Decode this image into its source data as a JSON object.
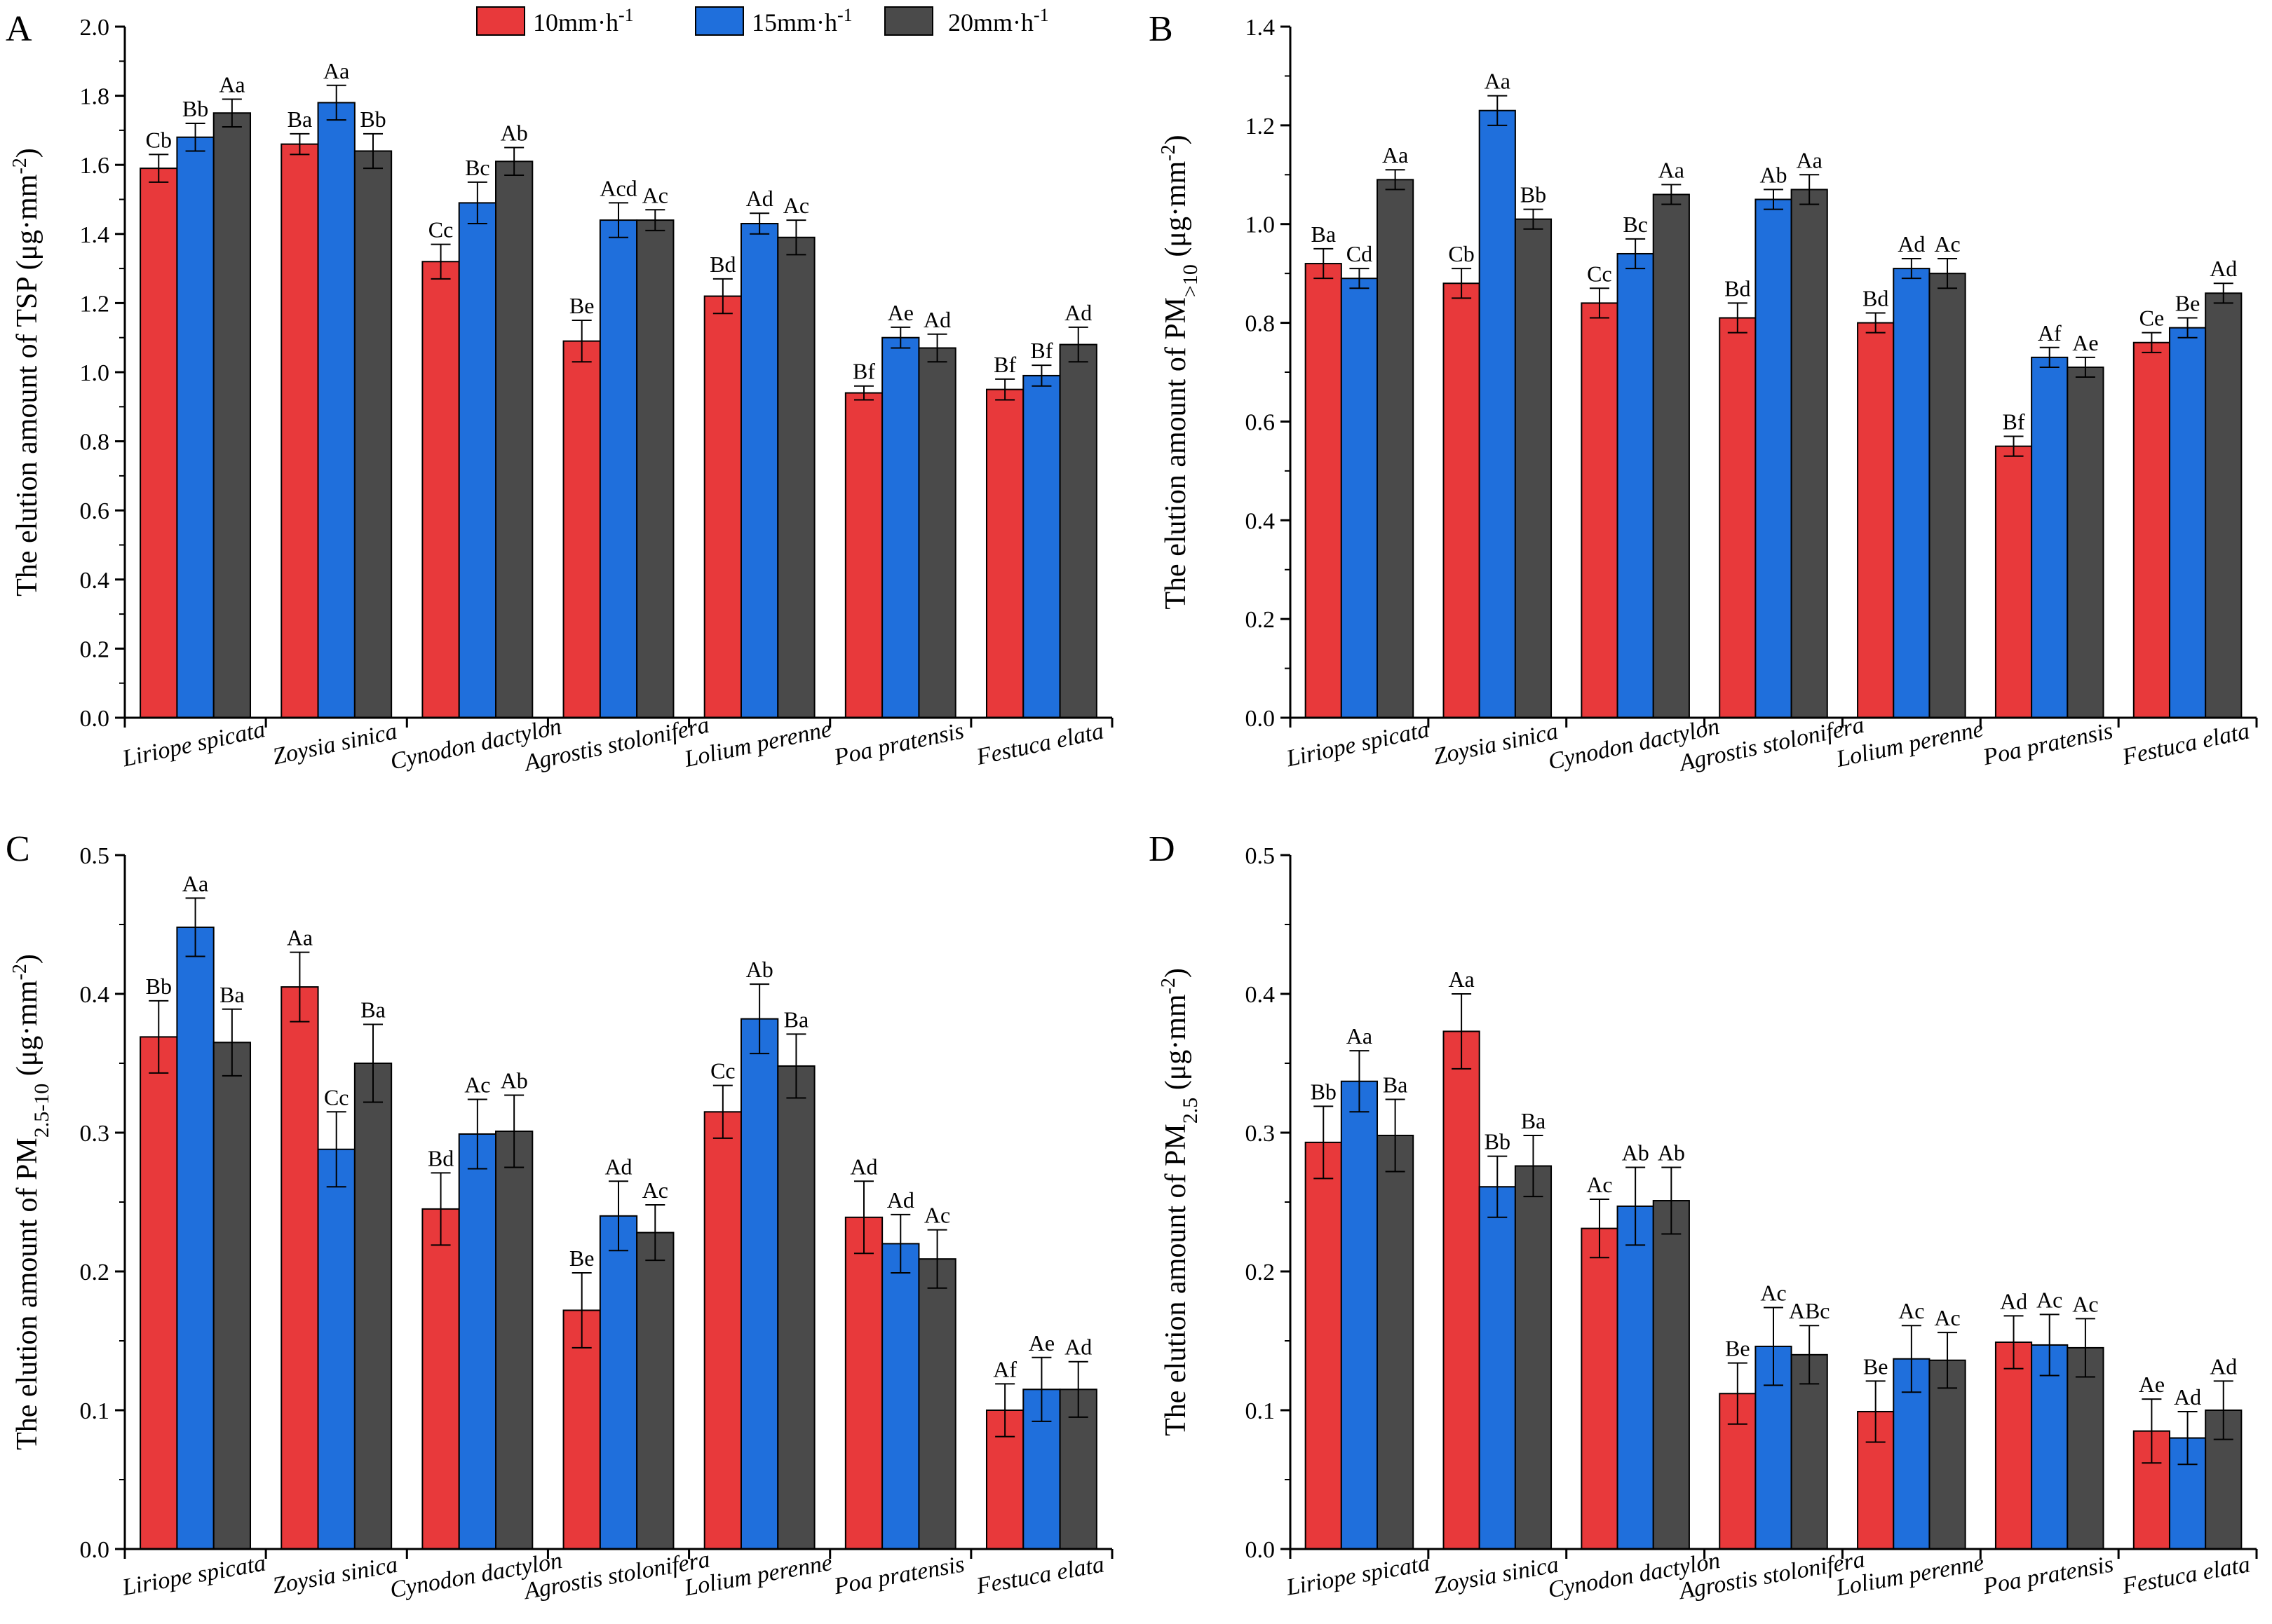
{
  "colors": {
    "rate10": "#e8393b",
    "rate15": "#1f6fdc",
    "rate20": "#4a4a4a",
    "axis": "#000000"
  },
  "legend": [
    {
      "label": "10mm·h",
      "sup": "-1",
      "color_key": "rate10"
    },
    {
      "label": "15mm·h",
      "sup": "-1",
      "color_key": "rate15"
    },
    {
      "label": "20mm·h",
      "sup": "-1",
      "color_key": "rate20"
    }
  ],
  "chart_data": [
    {
      "panel": "A",
      "type": "bar",
      "ylabel": {
        "main": "The elution amount of TSP (μg·mm",
        "sub": "",
        "tail": "",
        "sup": "-2",
        "end": ")"
      },
      "ylim": [
        0,
        2.0
      ],
      "yticks": [
        "0.0",
        "0.2",
        "0.4",
        "0.6",
        "0.8",
        "1.0",
        "1.2",
        "1.4",
        "1.6",
        "1.8",
        "2.0"
      ],
      "categories": [
        "Liriope spicata",
        "Zoysia sinica",
        "Cynodon dactylon",
        "Agrostis stolonifera",
        "Lolium perenne",
        "Poa pratensis",
        "Festuca elata"
      ],
      "series": [
        {
          "name": "10mm·h-1",
          "values": [
            1.59,
            1.66,
            1.32,
            1.09,
            1.22,
            0.94,
            0.95
          ],
          "errors": [
            0.04,
            0.03,
            0.05,
            0.06,
            0.05,
            0.02,
            0.03
          ],
          "labels": [
            "Cb",
            "Ba",
            "Cc",
            "Be",
            "Bd",
            "Bf",
            "Bf"
          ]
        },
        {
          "name": "15mm·h-1",
          "values": [
            1.68,
            1.78,
            1.49,
            1.44,
            1.43,
            1.1,
            0.99
          ],
          "errors": [
            0.04,
            0.05,
            0.06,
            0.05,
            0.03,
            0.03,
            0.03
          ],
          "labels": [
            "Bb",
            "Aa",
            "Bc",
            "Acd",
            "Ad",
            "Ae",
            "Bf"
          ]
        },
        {
          "name": "20mm·h-1",
          "values": [
            1.75,
            1.64,
            1.61,
            1.44,
            1.39,
            1.07,
            1.08
          ],
          "errors": [
            0.04,
            0.05,
            0.04,
            0.03,
            0.05,
            0.04,
            0.05
          ],
          "labels": [
            "Aa",
            "Bb",
            "Ab",
            "Ac",
            "Ac",
            "Ad",
            "Ad"
          ]
        }
      ]
    },
    {
      "panel": "B",
      "type": "bar",
      "ylabel": {
        "main": "The elution amount of PM",
        "sub": ">10",
        "tail": " (μg·mm",
        "sup": "-2",
        "end": ")"
      },
      "ylim": [
        0,
        1.4
      ],
      "yticks": [
        "0.0",
        "0.2",
        "0.4",
        "0.6",
        "0.8",
        "1.0",
        "1.2",
        "1.4"
      ],
      "categories": [
        "Liriope spicata",
        "Zoysia sinica",
        "Cynodon dactylon",
        "Agrostis stolonifera",
        "Lolium perenne",
        "Poa pratensis",
        "Festuca elata"
      ],
      "series": [
        {
          "name": "10mm·h-1",
          "values": [
            0.92,
            0.88,
            0.84,
            0.81,
            0.8,
            0.55,
            0.76
          ],
          "errors": [
            0.03,
            0.03,
            0.03,
            0.03,
            0.02,
            0.02,
            0.02
          ],
          "labels": [
            "Ba",
            "Cb",
            "Cc",
            "Bd",
            "Bd",
            "Bf",
            "Ce"
          ]
        },
        {
          "name": "15mm·h-1",
          "values": [
            0.89,
            1.23,
            0.94,
            1.05,
            0.91,
            0.73,
            0.79
          ],
          "errors": [
            0.02,
            0.03,
            0.03,
            0.02,
            0.02,
            0.02,
            0.02
          ],
          "labels": [
            "Cd",
            "Aa",
            "Bc",
            "Ab",
            "Ad",
            "Af",
            "Be"
          ]
        },
        {
          "name": "20mm·h-1",
          "values": [
            1.09,
            1.01,
            1.06,
            1.07,
            0.9,
            0.71,
            0.86
          ],
          "errors": [
            0.02,
            0.02,
            0.02,
            0.03,
            0.03,
            0.02,
            0.02
          ],
          "labels": [
            "Aa",
            "Bb",
            "Aa",
            "Aa",
            "Ac",
            "Ae",
            "Ad"
          ]
        }
      ]
    },
    {
      "panel": "C",
      "type": "bar",
      "ylabel": {
        "main": "The elution amount of PM",
        "sub": "2.5-10",
        "tail": " (μg·mm",
        "sup": "-2",
        "end": ")"
      },
      "ylim": [
        0,
        0.5
      ],
      "yticks": [
        "0.0",
        "0.1",
        "0.2",
        "0.3",
        "0.4",
        "0.5"
      ],
      "categories": [
        "Liriope spicata",
        "Zoysia sinica",
        "Cynodon dactylon",
        "Agrostis stolonifera",
        "Lolium perenne",
        "Poa pratensis",
        "Festuca elata"
      ],
      "series": [
        {
          "name": "10mm·h-1",
          "values": [
            0.369,
            0.405,
            0.245,
            0.172,
            0.315,
            0.239,
            0.1
          ],
          "errors": [
            0.026,
            0.025,
            0.026,
            0.027,
            0.019,
            0.026,
            0.019
          ],
          "labels": [
            "Bb",
            "Aa",
            "Bd",
            "Be",
            "Cc",
            "Ad",
            "Af"
          ]
        },
        {
          "name": "15mm·h-1",
          "values": [
            0.448,
            0.288,
            0.299,
            0.24,
            0.382,
            0.22,
            0.115
          ],
          "errors": [
            0.021,
            0.027,
            0.025,
            0.025,
            0.025,
            0.021,
            0.023
          ],
          "labels": [
            "Aa",
            "Cc",
            "Ac",
            "Ad",
            "Ab",
            "Ad",
            "Ae"
          ]
        },
        {
          "name": "20mm·h-1",
          "values": [
            0.365,
            0.35,
            0.301,
            0.228,
            0.348,
            0.209,
            0.115
          ],
          "errors": [
            0.024,
            0.028,
            0.026,
            0.02,
            0.023,
            0.021,
            0.02
          ],
          "labels": [
            "Ba",
            "Ba",
            "Ab",
            "Ac",
            "Ba",
            "Ac",
            "Ad"
          ]
        }
      ]
    },
    {
      "panel": "D",
      "type": "bar",
      "ylabel": {
        "main": "The elution amount of PM",
        "sub": "2.5",
        "tail": " (μg·mm",
        "sup": "-2",
        "end": ")"
      },
      "ylim": [
        0,
        0.5
      ],
      "yticks": [
        "0.0",
        "0.1",
        "0.2",
        "0.3",
        "0.4",
        "0.5"
      ],
      "categories": [
        "Liriope spicata",
        "Zoysia sinica",
        "Cynodon dactylon",
        "Agrostis stolonifera",
        "Lolium perenne",
        "Poa pratensis",
        "Festuca elata"
      ],
      "series": [
        {
          "name": "10mm·h-1",
          "values": [
            0.293,
            0.373,
            0.231,
            0.112,
            0.099,
            0.149,
            0.085
          ],
          "errors": [
            0.026,
            0.027,
            0.021,
            0.022,
            0.022,
            0.019,
            0.023
          ],
          "labels": [
            "Bb",
            "Aa",
            "Ac",
            "Be",
            "Be",
            "Ad",
            "Ae"
          ]
        },
        {
          "name": "15mm·h-1",
          "values": [
            0.337,
            0.261,
            0.247,
            0.146,
            0.137,
            0.147,
            0.08
          ],
          "errors": [
            0.022,
            0.022,
            0.028,
            0.028,
            0.024,
            0.022,
            0.019
          ],
          "labels": [
            "Aa",
            "Bb",
            "Ab",
            "Ac",
            "Ac",
            "Ac",
            "Ad"
          ]
        },
        {
          "name": "20mm·h-1",
          "values": [
            0.298,
            0.276,
            0.251,
            0.14,
            0.136,
            0.145,
            0.1
          ],
          "errors": [
            0.026,
            0.022,
            0.024,
            0.021,
            0.02,
            0.021,
            0.021
          ],
          "labels": [
            "Ba",
            "Ba",
            "Ab",
            "ABc",
            "Ac",
            "Ac",
            "Ad"
          ]
        }
      ]
    }
  ]
}
